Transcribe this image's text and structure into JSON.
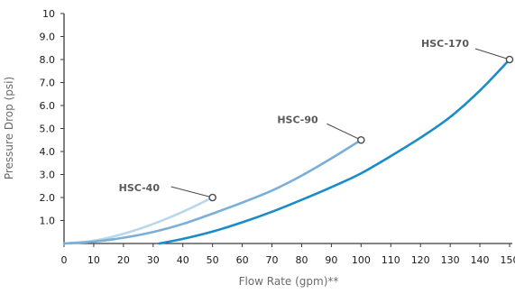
{
  "chart_data": {
    "type": "line",
    "xlabel": "Flow Rate (gpm)**",
    "ylabel": "Pressure Drop (psi)",
    "xlim": [
      0,
      150
    ],
    "ylim": [
      0,
      10
    ],
    "xticks": [
      "0",
      "10",
      "20",
      "30",
      "40",
      "50",
      "60",
      "70",
      "80",
      "90",
      "100",
      "110",
      "120",
      "130",
      "140",
      "150"
    ],
    "yticks": [
      "1.0",
      "2.0",
      "3.0",
      "4.0",
      "5.0",
      "6.0",
      "7.0",
      "8.0",
      "9.0",
      "10"
    ],
    "grid": false,
    "series": [
      {
        "name": "HSC-40",
        "color": "#b8d6ec",
        "x": [
          0,
          10,
          20,
          30,
          40,
          50
        ],
        "y": [
          0.0,
          0.12,
          0.42,
          0.85,
          1.38,
          2.0
        ],
        "marker": {
          "x": 50,
          "y": 2.0
        }
      },
      {
        "name": "HSC-90",
        "color": "#7aafd9",
        "x": [
          0,
          10,
          20,
          30,
          40,
          50,
          60,
          70,
          80,
          90,
          100
        ],
        "y": [
          0.0,
          0.08,
          0.25,
          0.5,
          0.85,
          1.3,
          1.78,
          2.3,
          2.95,
          3.7,
          4.5
        ],
        "marker": {
          "x": 100,
          "y": 4.5
        }
      },
      {
        "name": "HSC-170",
        "color": "#1a8cc8",
        "x": [
          32,
          40,
          50,
          60,
          70,
          80,
          90,
          100,
          110,
          120,
          130,
          140,
          150
        ],
        "y": [
          0.0,
          0.2,
          0.52,
          0.92,
          1.38,
          1.9,
          2.45,
          3.05,
          3.8,
          4.6,
          5.5,
          6.65,
          8.0
        ],
        "marker": {
          "x": 150,
          "y": 8.0
        }
      }
    ],
    "annotations": [
      {
        "text": "HSC-40",
        "series": "HSC-40"
      },
      {
        "text": "HSC-90",
        "series": "HSC-90"
      },
      {
        "text": "HSC-170",
        "series": "HSC-170"
      }
    ]
  }
}
